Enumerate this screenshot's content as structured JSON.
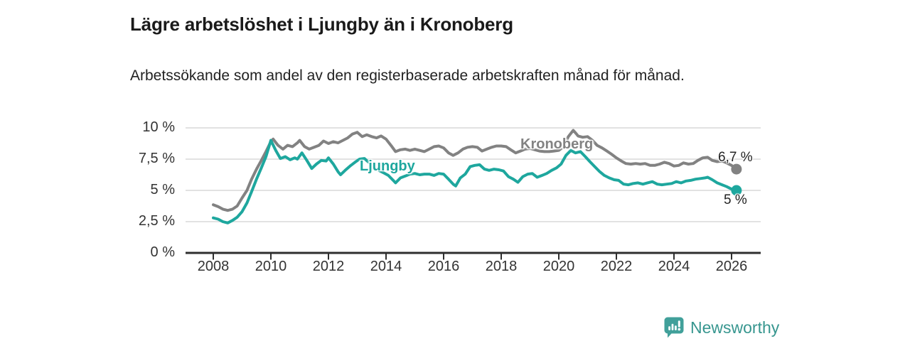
{
  "header": {
    "title": "Lägre arbetslöshet i Ljungby än i Kronoberg",
    "subtitle": "Arbetssökande som andel av den registerbaserade arbetskraften månad för månad."
  },
  "chart_data": {
    "type": "line",
    "title": "Lägre arbetslöshet i Ljungby än i Kronoberg",
    "ylabel": "Arbetssökande som andel av den registerbaserade arbetskraften",
    "grid": true,
    "legend_position": "inline-labels-on-lines",
    "x_axis": {
      "ticks": [
        2008,
        2010,
        2012,
        2014,
        2016,
        2018,
        2020,
        2022,
        2024,
        2026
      ],
      "min": 2007.1,
      "max": 2027
    },
    "y_axis": {
      "unit": "%",
      "min": 0,
      "max": 10,
      "ticks": [
        {
          "value": 0,
          "label": "0 %"
        },
        {
          "value": 2.5,
          "label": "2,5 %"
        },
        {
          "value": 5,
          "label": "5 %"
        },
        {
          "value": 7.5,
          "label": "7,5 %"
        },
        {
          "value": 10,
          "label": "10 %"
        }
      ]
    },
    "series": [
      {
        "name": "Kronoberg",
        "color": "#828282",
        "end_label": "6,7 %",
        "end_value": 6.7,
        "points": [
          [
            2008.0,
            3.85
          ],
          [
            2008.17,
            3.7
          ],
          [
            2008.33,
            3.5
          ],
          [
            2008.5,
            3.4
          ],
          [
            2008.67,
            3.5
          ],
          [
            2008.83,
            3.75
          ],
          [
            2009.0,
            4.4
          ],
          [
            2009.17,
            5.0
          ],
          [
            2009.33,
            5.9
          ],
          [
            2009.5,
            6.7
          ],
          [
            2009.67,
            7.4
          ],
          [
            2009.83,
            8.1
          ],
          [
            2010.0,
            8.9
          ],
          [
            2010.08,
            9.1
          ],
          [
            2010.25,
            8.6
          ],
          [
            2010.42,
            8.3
          ],
          [
            2010.58,
            8.6
          ],
          [
            2010.75,
            8.5
          ],
          [
            2010.92,
            8.8
          ],
          [
            2011.0,
            9.0
          ],
          [
            2011.17,
            8.5
          ],
          [
            2011.33,
            8.3
          ],
          [
            2011.5,
            8.45
          ],
          [
            2011.67,
            8.6
          ],
          [
            2011.83,
            8.95
          ],
          [
            2012.0,
            8.75
          ],
          [
            2012.17,
            8.9
          ],
          [
            2012.33,
            8.8
          ],
          [
            2012.5,
            9.0
          ],
          [
            2012.67,
            9.2
          ],
          [
            2012.83,
            9.5
          ],
          [
            2013.0,
            9.65
          ],
          [
            2013.17,
            9.3
          ],
          [
            2013.33,
            9.45
          ],
          [
            2013.5,
            9.3
          ],
          [
            2013.67,
            9.2
          ],
          [
            2013.83,
            9.35
          ],
          [
            2014.0,
            9.1
          ],
          [
            2014.17,
            8.6
          ],
          [
            2014.33,
            8.1
          ],
          [
            2014.5,
            8.25
          ],
          [
            2014.67,
            8.3
          ],
          [
            2014.83,
            8.2
          ],
          [
            2015.0,
            8.3
          ],
          [
            2015.17,
            8.2
          ],
          [
            2015.33,
            8.1
          ],
          [
            2015.5,
            8.3
          ],
          [
            2015.67,
            8.5
          ],
          [
            2015.83,
            8.55
          ],
          [
            2016.0,
            8.4
          ],
          [
            2016.17,
            8.0
          ],
          [
            2016.33,
            7.8
          ],
          [
            2016.5,
            8.0
          ],
          [
            2016.67,
            8.3
          ],
          [
            2016.83,
            8.45
          ],
          [
            2017.0,
            8.5
          ],
          [
            2017.17,
            8.45
          ],
          [
            2017.33,
            8.15
          ],
          [
            2017.5,
            8.3
          ],
          [
            2017.67,
            8.45
          ],
          [
            2017.83,
            8.55
          ],
          [
            2018.0,
            8.55
          ],
          [
            2018.17,
            8.5
          ],
          [
            2018.33,
            8.25
          ],
          [
            2018.5,
            8.0
          ],
          [
            2018.67,
            8.15
          ],
          [
            2018.83,
            8.3
          ],
          [
            2019.0,
            8.35
          ],
          [
            2019.17,
            8.25
          ],
          [
            2019.33,
            8.15
          ],
          [
            2019.5,
            8.1
          ],
          [
            2019.67,
            8.1
          ],
          [
            2019.83,
            8.15
          ],
          [
            2020.0,
            8.2
          ],
          [
            2020.17,
            8.5
          ],
          [
            2020.33,
            9.3
          ],
          [
            2020.5,
            9.8
          ],
          [
            2020.58,
            9.6
          ],
          [
            2020.67,
            9.35
          ],
          [
            2020.83,
            9.25
          ],
          [
            2021.0,
            9.3
          ],
          [
            2021.17,
            9.0
          ],
          [
            2021.33,
            8.6
          ],
          [
            2021.5,
            8.4
          ],
          [
            2021.67,
            8.15
          ],
          [
            2021.83,
            7.9
          ],
          [
            2022.0,
            7.6
          ],
          [
            2022.17,
            7.35
          ],
          [
            2022.33,
            7.15
          ],
          [
            2022.5,
            7.1
          ],
          [
            2022.67,
            7.15
          ],
          [
            2022.83,
            7.1
          ],
          [
            2023.0,
            7.15
          ],
          [
            2023.17,
            7.0
          ],
          [
            2023.33,
            7.0
          ],
          [
            2023.5,
            7.1
          ],
          [
            2023.67,
            7.25
          ],
          [
            2023.83,
            7.15
          ],
          [
            2024.0,
            6.95
          ],
          [
            2024.17,
            7.0
          ],
          [
            2024.33,
            7.2
          ],
          [
            2024.5,
            7.1
          ],
          [
            2024.67,
            7.15
          ],
          [
            2024.83,
            7.4
          ],
          [
            2025.0,
            7.6
          ],
          [
            2025.17,
            7.65
          ],
          [
            2025.33,
            7.4
          ],
          [
            2025.5,
            7.3
          ],
          [
            2025.67,
            7.35
          ],
          [
            2025.83,
            7.2
          ],
          [
            2026.0,
            7.0
          ],
          [
            2026.17,
            6.7
          ]
        ]
      },
      {
        "name": "Ljungby",
        "color": "#1ea79e",
        "end_label": "5 %",
        "end_value": 5.0,
        "points": [
          [
            2008.0,
            2.8
          ],
          [
            2008.17,
            2.7
          ],
          [
            2008.33,
            2.5
          ],
          [
            2008.5,
            2.4
          ],
          [
            2008.67,
            2.6
          ],
          [
            2008.83,
            2.85
          ],
          [
            2009.0,
            3.3
          ],
          [
            2009.17,
            4.0
          ],
          [
            2009.33,
            4.9
          ],
          [
            2009.5,
            5.9
          ],
          [
            2009.67,
            6.8
          ],
          [
            2009.83,
            7.7
          ],
          [
            2010.0,
            9.0
          ],
          [
            2010.17,
            8.2
          ],
          [
            2010.33,
            7.55
          ],
          [
            2010.5,
            7.7
          ],
          [
            2010.67,
            7.45
          ],
          [
            2010.83,
            7.6
          ],
          [
            2010.92,
            7.5
          ],
          [
            2011.08,
            8.0
          ],
          [
            2011.25,
            7.4
          ],
          [
            2011.42,
            6.75
          ],
          [
            2011.58,
            7.1
          ],
          [
            2011.75,
            7.4
          ],
          [
            2011.92,
            7.35
          ],
          [
            2012.0,
            7.6
          ],
          [
            2012.17,
            7.1
          ],
          [
            2012.33,
            6.5
          ],
          [
            2012.42,
            6.25
          ],
          [
            2012.58,
            6.6
          ],
          [
            2012.75,
            6.95
          ],
          [
            2012.92,
            7.25
          ],
          [
            2013.08,
            7.5
          ],
          [
            2013.25,
            7.55
          ],
          [
            2013.42,
            7.2
          ],
          [
            2013.58,
            6.9
          ],
          [
            2013.75,
            6.6
          ],
          [
            2013.92,
            6.4
          ],
          [
            2014.08,
            6.2
          ],
          [
            2014.25,
            5.8
          ],
          [
            2014.33,
            5.6
          ],
          [
            2014.5,
            6.0
          ],
          [
            2014.67,
            6.15
          ],
          [
            2014.83,
            6.3
          ],
          [
            2015.0,
            6.35
          ],
          [
            2015.17,
            6.25
          ],
          [
            2015.33,
            6.3
          ],
          [
            2015.5,
            6.3
          ],
          [
            2015.67,
            6.2
          ],
          [
            2015.83,
            6.35
          ],
          [
            2016.0,
            6.3
          ],
          [
            2016.17,
            5.9
          ],
          [
            2016.33,
            5.5
          ],
          [
            2016.42,
            5.35
          ],
          [
            2016.58,
            6.0
          ],
          [
            2016.75,
            6.3
          ],
          [
            2016.92,
            6.9
          ],
          [
            2017.08,
            7.0
          ],
          [
            2017.25,
            7.05
          ],
          [
            2017.42,
            6.7
          ],
          [
            2017.58,
            6.6
          ],
          [
            2017.75,
            6.7
          ],
          [
            2017.92,
            6.65
          ],
          [
            2018.08,
            6.55
          ],
          [
            2018.25,
            6.1
          ],
          [
            2018.42,
            5.9
          ],
          [
            2018.58,
            5.65
          ],
          [
            2018.75,
            6.1
          ],
          [
            2018.92,
            6.3
          ],
          [
            2019.08,
            6.35
          ],
          [
            2019.25,
            6.05
          ],
          [
            2019.42,
            6.2
          ],
          [
            2019.58,
            6.35
          ],
          [
            2019.75,
            6.6
          ],
          [
            2019.92,
            6.8
          ],
          [
            2020.08,
            7.1
          ],
          [
            2020.25,
            7.8
          ],
          [
            2020.42,
            8.2
          ],
          [
            2020.58,
            8.0
          ],
          [
            2020.75,
            8.1
          ],
          [
            2020.92,
            7.7
          ],
          [
            2021.08,
            7.3
          ],
          [
            2021.25,
            6.9
          ],
          [
            2021.42,
            6.5
          ],
          [
            2021.58,
            6.2
          ],
          [
            2021.75,
            6.0
          ],
          [
            2021.92,
            5.85
          ],
          [
            2022.08,
            5.8
          ],
          [
            2022.25,
            5.5
          ],
          [
            2022.42,
            5.45
          ],
          [
            2022.58,
            5.55
          ],
          [
            2022.75,
            5.6
          ],
          [
            2022.92,
            5.5
          ],
          [
            2023.08,
            5.6
          ],
          [
            2023.25,
            5.7
          ],
          [
            2023.42,
            5.5
          ],
          [
            2023.58,
            5.45
          ],
          [
            2023.75,
            5.5
          ],
          [
            2023.92,
            5.55
          ],
          [
            2024.08,
            5.7
          ],
          [
            2024.25,
            5.6
          ],
          [
            2024.42,
            5.75
          ],
          [
            2024.58,
            5.8
          ],
          [
            2024.75,
            5.9
          ],
          [
            2024.92,
            5.95
          ],
          [
            2025.08,
            6.0
          ],
          [
            2025.17,
            6.05
          ],
          [
            2025.33,
            5.85
          ],
          [
            2025.5,
            5.6
          ],
          [
            2025.67,
            5.45
          ],
          [
            2025.83,
            5.3
          ],
          [
            2026.0,
            5.1
          ],
          [
            2026.17,
            5.0
          ]
        ]
      }
    ],
    "colors": {
      "grid": "#d9d9d9",
      "axis": "#2e2e2e",
      "tick_text": "#333333"
    }
  },
  "branding": {
    "wordmark": "Newsworthy",
    "color": "#37968f",
    "icon": "newsworthy-logo-icon",
    "icon_color": "#41a09a"
  }
}
